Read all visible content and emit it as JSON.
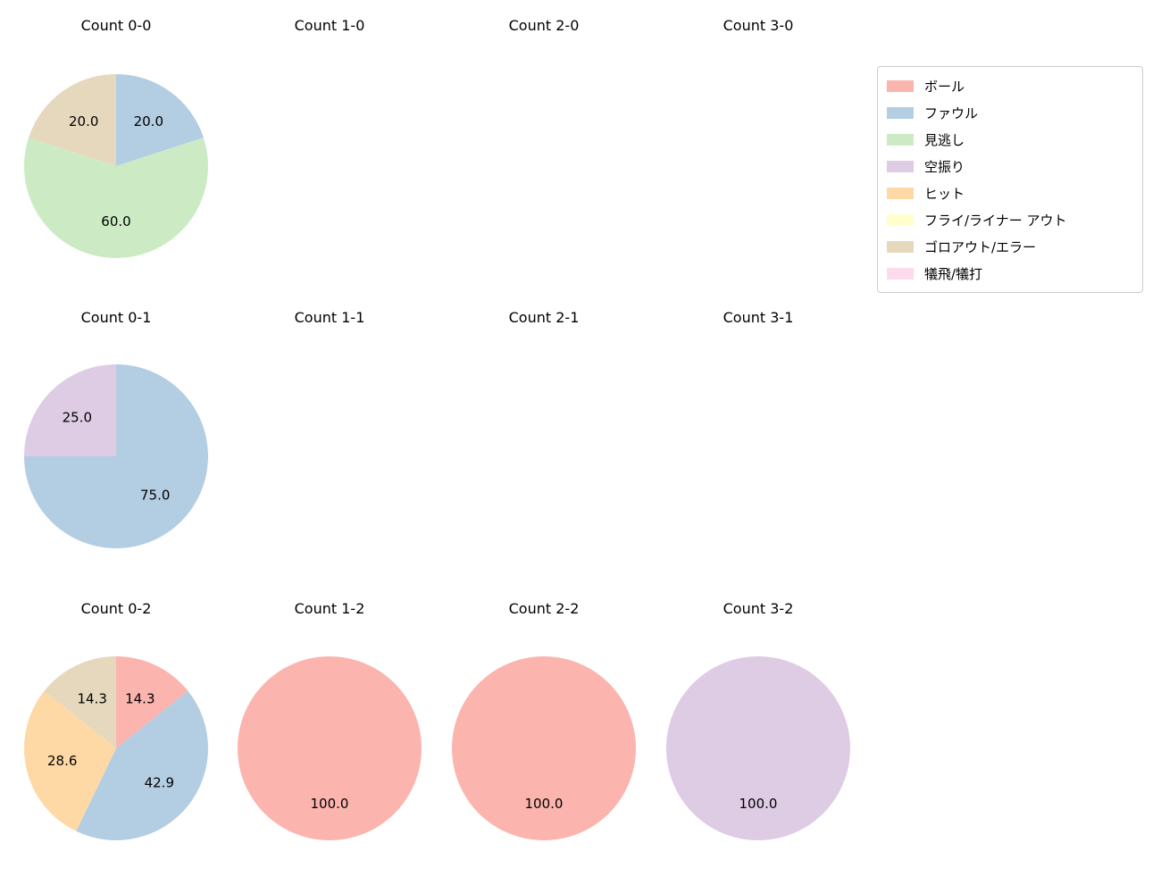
{
  "figure": {
    "background": "#ffffff"
  },
  "legend": {
    "items": [
      {
        "label": "ボール",
        "color": "#fbb4ae"
      },
      {
        "label": "ファウル",
        "color": "#b3cde3"
      },
      {
        "label": "見逃し",
        "color": "#ccebc5"
      },
      {
        "label": "空振り",
        "color": "#decbe4"
      },
      {
        "label": "ヒット",
        "color": "#fed9a6"
      },
      {
        "label": "フライ/ライナー アウト",
        "color": "#ffffcc"
      },
      {
        "label": "ゴロアウト/エラー",
        "color": "#e5d8bd"
      },
      {
        "label": "犠飛/犠打",
        "color": "#fddaec"
      }
    ]
  },
  "chart_data": [
    {
      "type": "pie",
      "title": "Count 0-0",
      "row": 0,
      "col": 0,
      "start_angle": 90,
      "direction": "clockwise",
      "slices": [
        {
          "label": "ファウル",
          "value": 20.0,
          "display": "20.0",
          "color": "#b3cde3"
        },
        {
          "label": "見逃し",
          "value": 60.0,
          "display": "60.0",
          "color": "#ccebc5"
        },
        {
          "label": "ゴロアウト/エラー",
          "value": 20.0,
          "display": "20.0",
          "color": "#e5d8bd"
        }
      ]
    },
    {
      "type": "pie",
      "title": "Count 1-0",
      "row": 0,
      "col": 1,
      "slices": []
    },
    {
      "type": "pie",
      "title": "Count 2-0",
      "row": 0,
      "col": 2,
      "slices": []
    },
    {
      "type": "pie",
      "title": "Count 3-0",
      "row": 0,
      "col": 3,
      "slices": []
    },
    {
      "type": "pie",
      "title": "Count 0-1",
      "row": 1,
      "col": 0,
      "start_angle": 90,
      "direction": "clockwise",
      "slices": [
        {
          "label": "ファウル",
          "value": 75.0,
          "display": "75.0",
          "color": "#b3cde3"
        },
        {
          "label": "空振り",
          "value": 25.0,
          "display": "25.0",
          "color": "#decbe4"
        }
      ]
    },
    {
      "type": "pie",
      "title": "Count 1-1",
      "row": 1,
      "col": 1,
      "slices": []
    },
    {
      "type": "pie",
      "title": "Count 2-1",
      "row": 1,
      "col": 2,
      "slices": []
    },
    {
      "type": "pie",
      "title": "Count 3-1",
      "row": 1,
      "col": 3,
      "slices": []
    },
    {
      "type": "pie",
      "title": "Count 0-2",
      "row": 2,
      "col": 0,
      "start_angle": 90,
      "direction": "clockwise",
      "slices": [
        {
          "label": "ボール",
          "value": 14.3,
          "display": "14.3",
          "color": "#fbb4ae"
        },
        {
          "label": "ファウル",
          "value": 42.9,
          "display": "42.9",
          "color": "#b3cde3"
        },
        {
          "label": "ヒット",
          "value": 28.6,
          "display": "28.6",
          "color": "#fed9a6"
        },
        {
          "label": "ゴロアウト/エラー",
          "value": 14.3,
          "display": "14.3",
          "color": "#e5d8bd"
        }
      ]
    },
    {
      "type": "pie",
      "title": "Count 1-2",
      "row": 2,
      "col": 1,
      "start_angle": 90,
      "direction": "clockwise",
      "slices": [
        {
          "label": "ボール",
          "value": 100.0,
          "display": "100.0",
          "color": "#fbb4ae"
        }
      ]
    },
    {
      "type": "pie",
      "title": "Count 2-2",
      "row": 2,
      "col": 2,
      "start_angle": 90,
      "direction": "clockwise",
      "slices": [
        {
          "label": "ボール",
          "value": 100.0,
          "display": "100.0",
          "color": "#fbb4ae"
        }
      ]
    },
    {
      "type": "pie",
      "title": "Count 3-2",
      "row": 2,
      "col": 3,
      "start_angle": 90,
      "direction": "clockwise",
      "slices": [
        {
          "label": "空振り",
          "value": 100.0,
          "display": "100.0",
          "color": "#decbe4"
        }
      ]
    }
  ]
}
